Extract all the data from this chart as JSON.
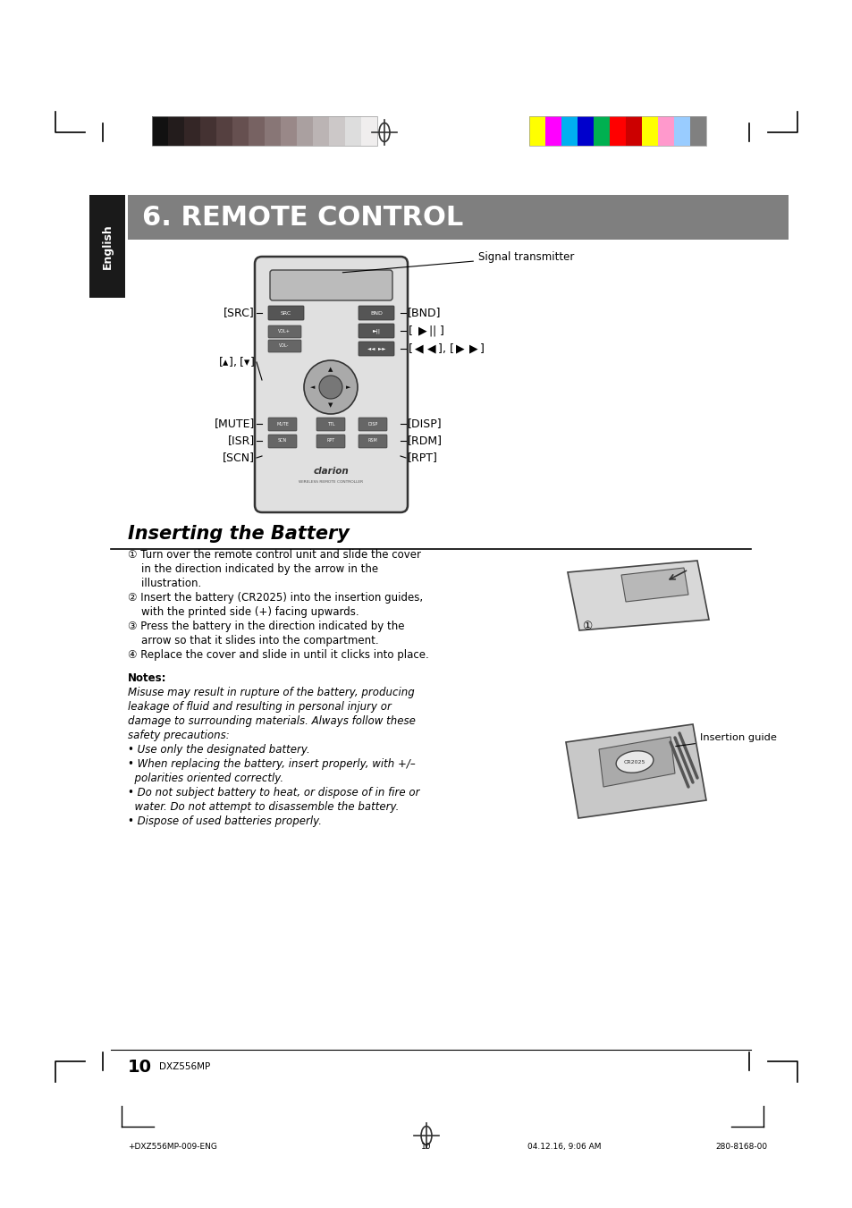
{
  "bg_color": "#ffffff",
  "page_width": 9.54,
  "page_height": 13.51,
  "header_bar_colors_left": [
    "#111111",
    "#231c1c",
    "#342626",
    "#443232",
    "#554040",
    "#665050",
    "#776262",
    "#887676",
    "#998888",
    "#aaa0a0",
    "#bbb4b4",
    "#ccc8c8",
    "#dddddd",
    "#f0eeee"
  ],
  "header_bar_colors_right": [
    "#ffff00",
    "#ff00ff",
    "#00b0f0",
    "#0000cc",
    "#00b050",
    "#ff0000",
    "#cc0000",
    "#ffff00",
    "#ff99cc",
    "#99ccff",
    "#808080"
  ],
  "title_bg": "#7f7f7f",
  "title_text": "6. REMOTE CONTROL",
  "title_text_color": "#ffffff",
  "english_tab_bg": "#1a1a1a",
  "english_tab_text": "English",
  "english_tab_text_color": "#ffffff",
  "section_title": "Inserting the Battery",
  "page_number": "10",
  "page_label": "DXZ556MP",
  "footer_left": "+DXZ556MP-009-ENG",
  "footer_center": "10",
  "footer_date": "04.12.16, 9:06 AM",
  "footer_right": "280-8168-00",
  "crosshair_color": "#333333",
  "corner_marks_color": "#000000",
  "body_text_color": "#000000"
}
